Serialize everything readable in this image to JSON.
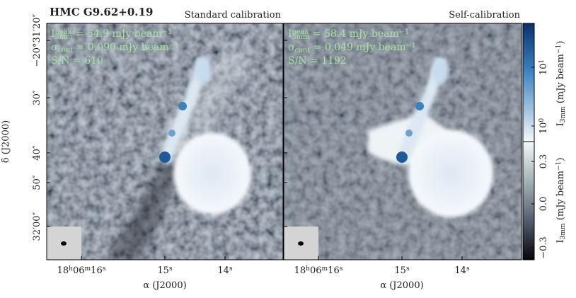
{
  "title": "HMC G9.62+0.19",
  "panels": [
    {
      "label": "Standard calibration",
      "annotations": [
        [
          {
            "t": "I"
          },
          {
            "t": "peak",
            "pos": "sup"
          },
          {
            "t": "3mm",
            "pos": "sub"
          },
          {
            "t": " = 54.9 mJy beam"
          },
          {
            "t": "−1",
            "pos": "sup"
          }
        ],
        [
          {
            "t": "σ"
          },
          {
            "t": "cont",
            "pos": "sub"
          },
          {
            "t": " = 0.090 mJy beam"
          },
          {
            "t": "−1",
            "pos": "sup"
          }
        ],
        [
          {
            "t": "S/N = 610"
          }
        ]
      ]
    },
    {
      "label": "Self-calibration",
      "annotations": [
        [
          {
            "t": "I"
          },
          {
            "t": "peak",
            "pos": "sup"
          },
          {
            "t": "3mm",
            "pos": "sub"
          },
          {
            "t": " = 58.4 mJy beam"
          },
          {
            "t": "−1",
            "pos": "sup"
          }
        ],
        [
          {
            "t": "σ"
          },
          {
            "t": "cont",
            "pos": "sub"
          },
          {
            "t": " = 0.049 mJy beam"
          },
          {
            "t": "−1",
            "pos": "sup"
          }
        ],
        [
          {
            "t": "S/N = 1192"
          }
        ]
      ]
    }
  ],
  "y_axis": {
    "label": "δ (J2000)",
    "ticks": [
      "−20°31′20″",
      "30″",
      "40″",
      "50″",
      "32′00″"
    ]
  },
  "x_axis": {
    "label": "α (J2000)",
    "ticks": [
      [
        {
          "t": "18"
        },
        {
          "t": "h",
          "pos": "sup"
        },
        {
          "t": "06"
        },
        {
          "t": "m",
          "pos": "sup"
        },
        {
          "t": "16"
        },
        {
          "t": "s",
          "pos": "sup"
        }
      ],
      [
        {
          "t": "15"
        },
        {
          "t": "s",
          "pos": "sup"
        }
      ],
      [
        {
          "t": "14"
        },
        {
          "t": "s",
          "pos": "sup"
        }
      ]
    ]
  },
  "colorbar": {
    "log_ticks": [
      [
        {
          "t": "10"
        },
        {
          "t": "1",
          "pos": "sup"
        }
      ],
      [
        {
          "t": "10"
        },
        {
          "t": "0",
          "pos": "sup"
        }
      ]
    ],
    "linear_ticks": [
      "0.3",
      "0.0",
      "−0.3"
    ],
    "label": [
      {
        "t": "I"
      },
      {
        "t": "3mm",
        "pos": "sub"
      },
      {
        "t": " (mJy beam"
      },
      {
        "t": "−1",
        "pos": "sup"
      },
      {
        "t": ")"
      }
    ]
  }
}
